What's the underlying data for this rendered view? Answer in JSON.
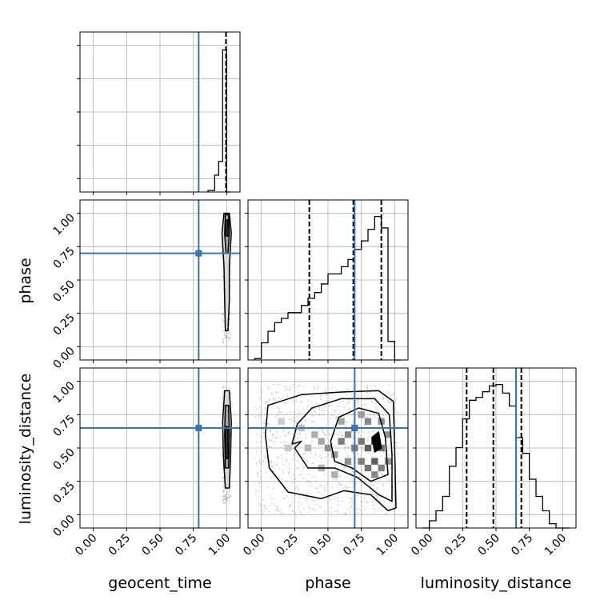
{
  "colors": {
    "truth": "#3b75af",
    "grid": "#b0b0b0",
    "hist": "#000000",
    "scatter": "#999999"
  },
  "chart_data": {
    "type": "scatter",
    "variant": "corner-plot",
    "parameters": [
      "geocent_time",
      "phase",
      "luminosity_distance"
    ],
    "axis_labels": {
      "geocent_time": "geocent_time",
      "phase": "phase",
      "luminosity_distance": "luminosity_distance"
    },
    "tick_values": [
      0.0,
      0.25,
      0.5,
      0.75,
      1.0
    ],
    "tick_labels": [
      "0.00",
      "0.25",
      "0.50",
      "0.75",
      "1.00"
    ],
    "xlim": [
      -0.1,
      1.1
    ],
    "grid": true,
    "truths": {
      "geocent_time": 0.79,
      "phase": 0.7,
      "luminosity_distance": 0.65
    },
    "quantiles": {
      "geocent_time": [
        0.995
      ],
      "phase": [
        0.36,
        0.69,
        0.9
      ],
      "luminosity_distance": [
        0.28,
        0.48,
        0.69
      ]
    },
    "histograms": {
      "geocent_time": {
        "bin_edges": [
          0.86,
          0.91,
          0.94,
          0.97,
          1.0,
          1.03
        ],
        "heights": [
          0.01,
          0.11,
          0.2,
          0.93,
          0.0
        ]
      },
      "phase": {
        "bin_edges": [
          -0.05,
          0.0,
          0.05,
          0.1,
          0.15,
          0.2,
          0.25,
          0.3,
          0.35,
          0.4,
          0.45,
          0.5,
          0.55,
          0.6,
          0.65,
          0.7,
          0.75,
          0.8,
          0.85,
          0.9,
          0.95,
          1.0,
          1.05
        ],
        "heights": [
          0.01,
          0.12,
          0.2,
          0.26,
          0.29,
          0.33,
          0.33,
          0.38,
          0.43,
          0.47,
          0.53,
          0.6,
          0.6,
          0.65,
          0.7,
          0.77,
          0.83,
          0.91,
          1.0,
          0.92,
          0.13,
          0.0
        ]
      },
      "luminosity_distance": {
        "bin_edges": [
          -0.05,
          0.0,
          0.05,
          0.1,
          0.15,
          0.2,
          0.25,
          0.3,
          0.35,
          0.4,
          0.45,
          0.5,
          0.55,
          0.6,
          0.65,
          0.7,
          0.75,
          0.8,
          0.85,
          0.9,
          0.95,
          1.0,
          1.05
        ],
        "heights": [
          0.0,
          0.05,
          0.12,
          0.22,
          0.43,
          0.56,
          0.76,
          0.89,
          0.91,
          0.95,
          0.99,
          1.0,
          0.94,
          0.85,
          0.63,
          0.52,
          0.34,
          0.22,
          0.12,
          0.03,
          0.0,
          0.0
        ]
      }
    },
    "joint": {
      "phase_vs_geocent_time": {
        "x": "geocent_time",
        "y": "phase",
        "contours": [
          [
            [
              1.02,
              1.0
            ],
            [
              1.035,
              0.85
            ],
            [
              1.02,
              0.6
            ],
            [
              1.02,
              0.35
            ],
            [
              1.01,
              0.12
            ],
            [
              0.99,
              0.12
            ],
            [
              0.985,
              0.35
            ],
            [
              0.98,
              0.6
            ],
            [
              0.965,
              0.85
            ],
            [
              0.98,
              1.0
            ]
          ],
          [
            [
              1.015,
              0.99
            ],
            [
              1.02,
              0.85
            ],
            [
              1.01,
              0.7
            ],
            [
              0.995,
              0.7
            ],
            [
              0.985,
              0.85
            ],
            [
              0.99,
              0.99
            ]
          ],
          [
            [
              1.01,
              0.95
            ],
            [
              1.01,
              0.83
            ],
            [
              0.995,
              0.83
            ],
            [
              0.995,
              0.95
            ]
          ]
        ]
      },
      "luminosity_distance_vs_geocent_time": {
        "x": "geocent_time",
        "y": "luminosity_distance",
        "contours": [
          [
            [
              1.02,
              0.93
            ],
            [
              1.035,
              0.7
            ],
            [
              1.03,
              0.45
            ],
            [
              1.02,
              0.2
            ],
            [
              0.99,
              0.2
            ],
            [
              0.975,
              0.45
            ],
            [
              0.97,
              0.7
            ],
            [
              0.985,
              0.93
            ]
          ],
          [
            [
              1.015,
              0.82
            ],
            [
              1.02,
              0.6
            ],
            [
              1.015,
              0.35
            ],
            [
              0.99,
              0.35
            ],
            [
              0.985,
              0.6
            ],
            [
              0.99,
              0.82
            ]
          ],
          [
            [
              1.01,
              0.66
            ],
            [
              1.01,
              0.42
            ],
            [
              0.995,
              0.42
            ],
            [
              0.995,
              0.66
            ]
          ]
        ]
      },
      "luminosity_distance_vs_phase": {
        "x": "phase",
        "y": "luminosity_distance",
        "contours": [
          [
            [
              0.05,
              0.82
            ],
            [
              0.3,
              0.9
            ],
            [
              0.6,
              0.92
            ],
            [
              0.88,
              0.93
            ],
            [
              0.99,
              0.85
            ],
            [
              1.0,
              0.5
            ],
            [
              1.01,
              0.05
            ],
            [
              0.95,
              0.03
            ],
            [
              0.82,
              0.15
            ],
            [
              0.62,
              0.18
            ],
            [
              0.45,
              0.12
            ],
            [
              0.2,
              0.17
            ],
            [
              0.06,
              0.35
            ],
            [
              0.03,
              0.6
            ]
          ],
          [
            [
              0.27,
              0.68
            ],
            [
              0.38,
              0.8
            ],
            [
              0.6,
              0.87
            ],
            [
              0.85,
              0.87
            ],
            [
              0.96,
              0.75
            ],
            [
              0.98,
              0.45
            ],
            [
              0.98,
              0.1
            ],
            [
              0.88,
              0.15
            ],
            [
              0.72,
              0.28
            ],
            [
              0.55,
              0.35
            ],
            [
              0.35,
              0.35
            ],
            [
              0.25,
              0.5
            ],
            [
              0.3,
              0.55
            ],
            [
              0.23,
              0.53
            ]
          ],
          [
            [
              0.52,
              0.55
            ],
            [
              0.58,
              0.73
            ],
            [
              0.73,
              0.8
            ],
            [
              0.88,
              0.76
            ],
            [
              0.93,
              0.58
            ],
            [
              0.95,
              0.3
            ],
            [
              0.82,
              0.25
            ],
            [
              0.68,
              0.35
            ],
            [
              0.55,
              0.4
            ]
          ],
          [
            [
              0.83,
              0.58
            ],
            [
              0.88,
              0.62
            ],
            [
              0.9,
              0.5
            ],
            [
              0.85,
              0.47
            ]
          ]
        ],
        "density_cells": [
          [
            0.45,
            0.55,
            0.35
          ],
          [
            0.5,
            0.5,
            0.45
          ],
          [
            0.55,
            0.45,
            0.4
          ],
          [
            0.6,
            0.55,
            0.55
          ],
          [
            0.65,
            0.6,
            0.5
          ],
          [
            0.7,
            0.5,
            0.55
          ],
          [
            0.75,
            0.55,
            0.6
          ],
          [
            0.8,
            0.5,
            0.7
          ],
          [
            0.85,
            0.55,
            0.85
          ],
          [
            0.9,
            0.5,
            0.6
          ],
          [
            0.75,
            0.4,
            0.55
          ],
          [
            0.8,
            0.35,
            0.6
          ],
          [
            0.85,
            0.4,
            0.7
          ],
          [
            0.9,
            0.35,
            0.55
          ],
          [
            0.7,
            0.65,
            0.45
          ],
          [
            0.8,
            0.7,
            0.5
          ],
          [
            0.9,
            0.7,
            0.45
          ],
          [
            0.6,
            0.7,
            0.35
          ],
          [
            0.4,
            0.6,
            0.3
          ],
          [
            0.35,
            0.5,
            0.28
          ],
          [
            0.3,
            0.65,
            0.22
          ],
          [
            0.65,
            0.4,
            0.45
          ],
          [
            0.55,
            0.3,
            0.3
          ],
          [
            0.45,
            0.35,
            0.28
          ],
          [
            0.95,
            0.6,
            0.45
          ],
          [
            0.95,
            0.4,
            0.45
          ],
          [
            0.85,
            0.3,
            0.5
          ],
          [
            0.75,
            0.75,
            0.4
          ],
          [
            0.2,
            0.5,
            0.18
          ],
          [
            0.15,
            0.7,
            0.15
          ]
        ]
      }
    }
  }
}
